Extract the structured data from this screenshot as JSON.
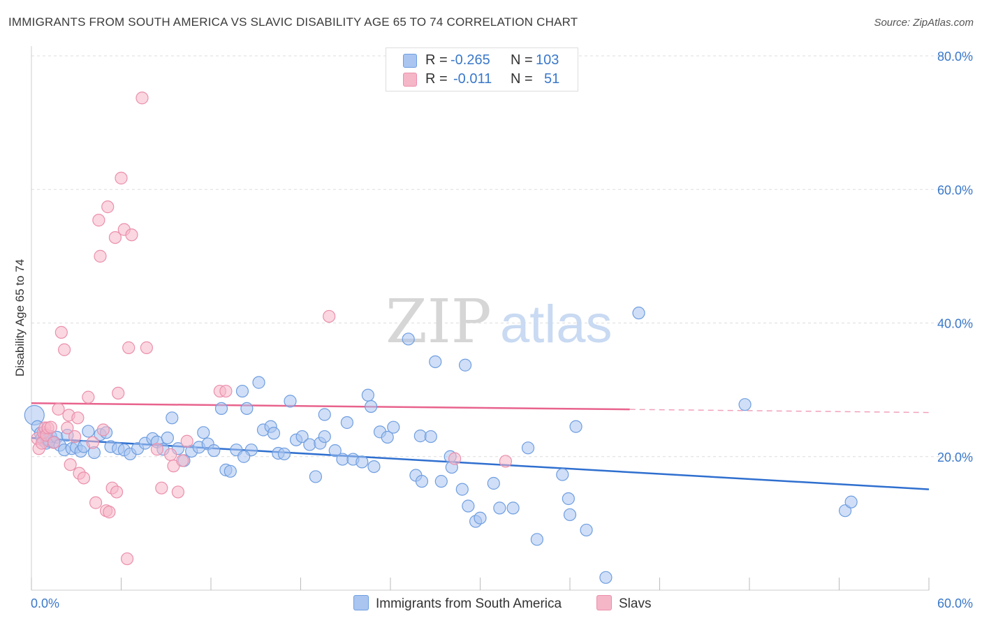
{
  "title": "IMMIGRANTS FROM SOUTH AMERICA VS SLAVIC DISABILITY AGE 65 TO 74 CORRELATION CHART",
  "source": "Source: ZipAtlas.com",
  "watermark": {
    "zip": "ZIP",
    "atlas": "atlas"
  },
  "legend": {
    "r_label": "R =",
    "n_label": "N =",
    "series1": {
      "r": "-0.265",
      "n": "103"
    },
    "series2": {
      "r": "-0.011",
      "n": "51"
    }
  },
  "bottom_legend": {
    "series1": "Immigrants from South America",
    "series2": "Slavs"
  },
  "colors": {
    "blue_fill": "#a9c5f0",
    "blue_stroke": "#6f9ee0",
    "blue_line": "#2f6fcf",
    "pink_fill": "#f5b6c8",
    "pink_stroke": "#eb8fab",
    "pink_line": "#e8638d",
    "tick_text": "#3a78c9",
    "grid": "#dddddd"
  },
  "chart_data": {
    "type": "scatter",
    "title": "IMMIGRANTS FROM SOUTH AMERICA VS SLAVIC DISABILITY AGE 65 TO 74 CORRELATION CHART",
    "xlabel": "",
    "ylabel": "Disability Age 65 to 74",
    "xlim": [
      0,
      60
    ],
    "ylim": [
      0,
      80
    ],
    "x_tick_labels": [
      "0.0%",
      "60.0%"
    ],
    "y_ticks": [
      20,
      40,
      60,
      80
    ],
    "y_tick_labels": [
      "20.0%",
      "40.0%",
      "60.0%",
      "80.0%"
    ],
    "grid": true,
    "legend_position": "top-center",
    "series": [
      {
        "name": "Immigrants from South America",
        "r": -0.265,
        "n": 103,
        "trend": {
          "x": [
            0,
            60
          ],
          "y": [
            22.8,
            15.1
          ],
          "dashed_from": null
        },
        "points": [
          [
            0.2,
            26.2
          ],
          [
            0.4,
            24.5
          ],
          [
            0.6,
            23.5
          ],
          [
            0.7,
            22.8
          ],
          [
            0.8,
            22.4
          ],
          [
            0.9,
            23.1
          ],
          [
            1.0,
            22.0
          ],
          [
            1.1,
            22.6
          ],
          [
            1.2,
            22.3
          ],
          [
            1.3,
            23.0
          ],
          [
            1.5,
            22.2
          ],
          [
            1.7,
            22.9
          ],
          [
            1.9,
            21.7
          ],
          [
            2.2,
            21.0
          ],
          [
            2.4,
            23.2
          ],
          [
            2.7,
            21.2
          ],
          [
            3.0,
            21.4
          ],
          [
            3.3,
            20.8
          ],
          [
            3.5,
            21.5
          ],
          [
            3.8,
            23.8
          ],
          [
            4.2,
            20.6
          ],
          [
            4.6,
            23.3
          ],
          [
            5.0,
            23.6
          ],
          [
            5.3,
            21.5
          ],
          [
            5.8,
            21.2
          ],
          [
            6.2,
            21.0
          ],
          [
            6.6,
            20.4
          ],
          [
            7.1,
            21.2
          ],
          [
            7.6,
            22.0
          ],
          [
            8.1,
            22.7
          ],
          [
            8.4,
            22.2
          ],
          [
            8.8,
            21.1
          ],
          [
            9.1,
            22.8
          ],
          [
            9.4,
            25.8
          ],
          [
            9.8,
            21.2
          ],
          [
            10.2,
            19.4
          ],
          [
            10.7,
            20.8
          ],
          [
            11.2,
            21.4
          ],
          [
            11.5,
            23.6
          ],
          [
            11.8,
            21.9
          ],
          [
            12.2,
            20.9
          ],
          [
            12.7,
            27.2
          ],
          [
            13.0,
            18.0
          ],
          [
            13.3,
            17.8
          ],
          [
            13.7,
            21.0
          ],
          [
            14.1,
            29.8
          ],
          [
            14.4,
            27.2
          ],
          [
            14.7,
            21.0
          ],
          [
            14.2,
            20.0
          ],
          [
            15.2,
            31.1
          ],
          [
            15.5,
            24.0
          ],
          [
            16.0,
            24.5
          ],
          [
            16.2,
            23.5
          ],
          [
            16.5,
            20.5
          ],
          [
            16.9,
            20.4
          ],
          [
            17.3,
            28.3
          ],
          [
            17.7,
            22.5
          ],
          [
            18.1,
            23.0
          ],
          [
            18.6,
            21.8
          ],
          [
            19.0,
            17.0
          ],
          [
            19.3,
            22.0
          ],
          [
            19.6,
            23.0
          ],
          [
            19.6,
            26.3
          ],
          [
            20.3,
            20.9
          ],
          [
            20.8,
            19.6
          ],
          [
            21.1,
            25.1
          ],
          [
            21.5,
            19.6
          ],
          [
            22.1,
            19.2
          ],
          [
            22.5,
            29.2
          ],
          [
            22.7,
            27.5
          ],
          [
            22.9,
            18.5
          ],
          [
            23.3,
            23.7
          ],
          [
            23.8,
            22.9
          ],
          [
            24.2,
            24.4
          ],
          [
            25.2,
            37.6
          ],
          [
            25.7,
            17.2
          ],
          [
            26.0,
            23.1
          ],
          [
            26.7,
            23.0
          ],
          [
            26.1,
            16.3
          ],
          [
            27.0,
            34.2
          ],
          [
            27.4,
            16.3
          ],
          [
            28.0,
            20.0
          ],
          [
            28.1,
            18.4
          ],
          [
            28.8,
            15.1
          ],
          [
            29.0,
            33.7
          ],
          [
            29.2,
            12.6
          ],
          [
            29.7,
            10.3
          ],
          [
            30.0,
            10.8
          ],
          [
            30.9,
            16.0
          ],
          [
            31.3,
            12.3
          ],
          [
            32.2,
            12.3
          ],
          [
            33.2,
            21.3
          ],
          [
            33.8,
            7.6
          ],
          [
            35.5,
            17.3
          ],
          [
            35.9,
            13.7
          ],
          [
            36.0,
            11.3
          ],
          [
            36.4,
            24.5
          ],
          [
            37.1,
            9.0
          ],
          [
            38.4,
            1.9
          ],
          [
            40.6,
            41.5
          ],
          [
            47.7,
            27.8
          ],
          [
            54.4,
            11.9
          ],
          [
            54.8,
            13.2
          ]
        ]
      },
      {
        "name": "Slavs",
        "r": -0.011,
        "n": 51,
        "trend": {
          "x": [
            0,
            60
          ],
          "y": [
            28.0,
            26.6
          ],
          "dashed_from": 40.0
        },
        "points": [
          [
            0.4,
            22.7
          ],
          [
            0.5,
            21.2
          ],
          [
            0.7,
            22.0
          ],
          [
            0.8,
            23.6
          ],
          [
            0.9,
            24.3
          ],
          [
            1.0,
            23.2
          ],
          [
            1.1,
            24.3
          ],
          [
            1.3,
            24.4
          ],
          [
            1.5,
            22.1
          ],
          [
            1.8,
            27.1
          ],
          [
            2.0,
            38.6
          ],
          [
            2.2,
            36.0
          ],
          [
            2.4,
            24.3
          ],
          [
            2.5,
            26.2
          ],
          [
            2.6,
            18.8
          ],
          [
            2.9,
            23.0
          ],
          [
            3.1,
            25.8
          ],
          [
            3.2,
            17.5
          ],
          [
            3.5,
            16.8
          ],
          [
            3.8,
            28.9
          ],
          [
            4.1,
            22.1
          ],
          [
            4.3,
            13.1
          ],
          [
            4.5,
            55.4
          ],
          [
            4.6,
            50.0
          ],
          [
            4.8,
            24.0
          ],
          [
            5.0,
            11.9
          ],
          [
            5.1,
            57.4
          ],
          [
            5.2,
            11.7
          ],
          [
            5.4,
            15.3
          ],
          [
            5.6,
            52.8
          ],
          [
            5.7,
            14.7
          ],
          [
            5.8,
            29.5
          ],
          [
            6.0,
            61.7
          ],
          [
            6.2,
            54.0
          ],
          [
            6.4,
            4.7
          ],
          [
            6.5,
            36.3
          ],
          [
            6.7,
            53.2
          ],
          [
            7.4,
            73.7
          ],
          [
            7.7,
            36.3
          ],
          [
            8.4,
            21.1
          ],
          [
            8.7,
            15.3
          ],
          [
            9.3,
            20.3
          ],
          [
            9.5,
            18.6
          ],
          [
            9.8,
            14.7
          ],
          [
            10.1,
            19.4
          ],
          [
            10.4,
            22.3
          ],
          [
            12.6,
            29.8
          ],
          [
            13.0,
            29.8
          ],
          [
            19.9,
            41.0
          ],
          [
            28.3,
            19.7
          ],
          [
            31.7,
            19.3
          ]
        ]
      }
    ]
  }
}
